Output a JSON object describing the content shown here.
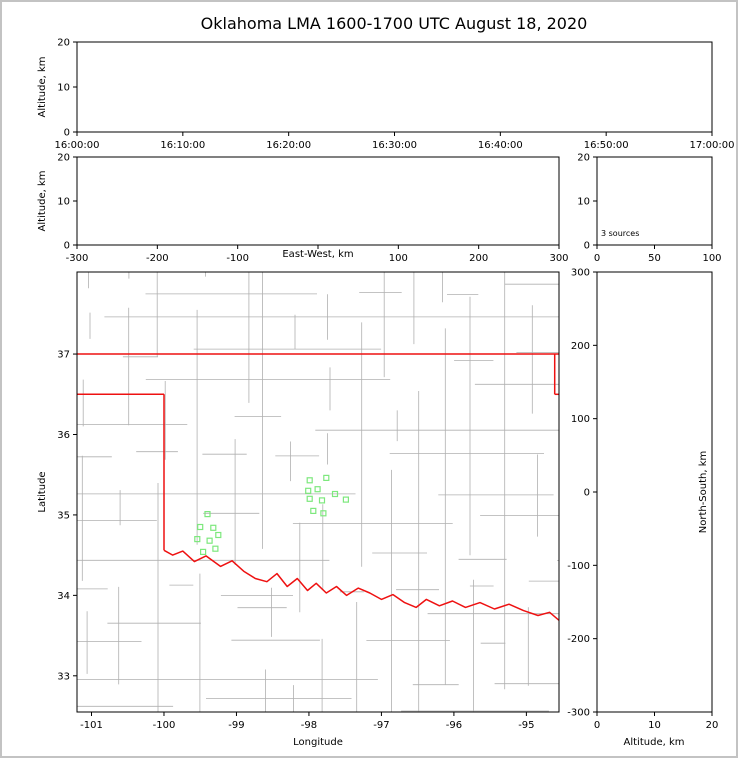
{
  "figure": {
    "title": "Oklahoma LMA 1600-1700 UTC August 18, 2020"
  },
  "colors": {
    "axis": "#000000",
    "county_lines": "#b0b0b0",
    "state_lines": "#ee1111",
    "station_marker": "#7de87d",
    "background": "#ffffff",
    "frame_border": "#c3c3c3"
  },
  "chart_data": [
    {
      "id": "time_height",
      "type": "scatter",
      "xlabel": "",
      "ylabel": "Altitude, km",
      "xlim": [
        0,
        6
      ],
      "ylim": [
        0,
        20
      ],
      "xticks": [
        0,
        1,
        2,
        3,
        4,
        5,
        6
      ],
      "xtick_labels": [
        "16:00:00",
        "16:10:00",
        "16:20:00",
        "16:30:00",
        "16:40:00",
        "16:50:00",
        "17:00:00"
      ],
      "yticks": [
        0,
        10,
        20
      ],
      "points": []
    },
    {
      "id": "east_west",
      "type": "scatter",
      "xlabel": "East-West, km",
      "ylabel": "Altitude, km",
      "xlim": [
        -300,
        300
      ],
      "ylim": [
        0,
        20
      ],
      "xticks": [
        -300,
        -200,
        -100,
        0,
        100,
        200,
        300
      ],
      "xtick_labels": [
        "-300",
        "-200",
        "-100",
        "",
        "100",
        "200",
        "300"
      ],
      "yticks": [
        0,
        10,
        20
      ],
      "points": []
    },
    {
      "id": "source_histogram",
      "type": "line",
      "xlabel": "",
      "ylabel": "",
      "xlim": [
        0,
        100
      ],
      "ylim": [
        0,
        20
      ],
      "xticks": [
        0,
        50,
        100
      ],
      "yticks": [
        0,
        10,
        20
      ],
      "annotation": "3 sources",
      "points": []
    },
    {
      "id": "plan_view_map",
      "type": "map-scatter",
      "xlabel": "Longitude",
      "ylabel": "Latitude",
      "xlim": [
        -101.2,
        -94.55
      ],
      "ylim": [
        32.55,
        38.02
      ],
      "xticks": [
        -101,
        -100,
        -99,
        -98,
        -97,
        -96,
        -95
      ],
      "yticks": [
        33,
        34,
        35,
        36,
        37
      ],
      "state_border_segments": [
        [
          [
            -101.2,
            37.0
          ],
          [
            -94.55,
            37.0
          ]
        ],
        [
          [
            -101.2,
            36.5
          ],
          [
            -100.0,
            36.5
          ]
        ],
        [
          [
            -100.0,
            36.5
          ],
          [
            -100.0,
            34.56
          ]
        ],
        [
          [
            -94.61,
            37.0
          ],
          [
            -94.61,
            36.5
          ]
        ],
        [
          [
            -94.61,
            36.5
          ],
          [
            -94.55,
            36.5
          ]
        ]
      ],
      "red_river": [
        [
          -100.0,
          34.56
        ],
        [
          -99.88,
          34.5
        ],
        [
          -99.74,
          34.55
        ],
        [
          -99.58,
          34.42
        ],
        [
          -99.42,
          34.49
        ],
        [
          -99.22,
          34.36
        ],
        [
          -99.06,
          34.43
        ],
        [
          -98.9,
          34.3
        ],
        [
          -98.74,
          34.21
        ],
        [
          -98.58,
          34.17
        ],
        [
          -98.44,
          34.27
        ],
        [
          -98.3,
          34.11
        ],
        [
          -98.16,
          34.21
        ],
        [
          -98.02,
          34.06
        ],
        [
          -97.9,
          34.15
        ],
        [
          -97.76,
          34.03
        ],
        [
          -97.62,
          34.11
        ],
        [
          -97.48,
          34.0
        ],
        [
          -97.32,
          34.09
        ],
        [
          -97.16,
          34.03
        ],
        [
          -97.0,
          33.95
        ],
        [
          -96.84,
          34.01
        ],
        [
          -96.68,
          33.91
        ],
        [
          -96.52,
          33.85
        ],
        [
          -96.38,
          33.95
        ],
        [
          -96.2,
          33.87
        ],
        [
          -96.02,
          33.93
        ],
        [
          -95.84,
          33.85
        ],
        [
          -95.64,
          33.91
        ],
        [
          -95.44,
          33.83
        ],
        [
          -95.24,
          33.89
        ],
        [
          -95.04,
          33.81
        ],
        [
          -94.84,
          33.75
        ],
        [
          -94.68,
          33.79
        ],
        [
          -94.55,
          33.69
        ]
      ],
      "stations": [
        [
          -97.99,
          35.43
        ],
        [
          -97.76,
          35.46
        ],
        [
          -98.01,
          35.3
        ],
        [
          -97.88,
          35.32
        ],
        [
          -97.99,
          35.2
        ],
        [
          -97.82,
          35.18
        ],
        [
          -97.64,
          35.26
        ],
        [
          -97.94,
          35.05
        ],
        [
          -97.8,
          35.02
        ],
        [
          -97.49,
          35.19
        ],
        [
          -99.4,
          35.01
        ],
        [
          -99.5,
          34.85
        ],
        [
          -99.32,
          34.84
        ],
        [
          -99.54,
          34.7
        ],
        [
          -99.37,
          34.68
        ],
        [
          -99.46,
          34.54
        ],
        [
          -99.29,
          34.58
        ],
        [
          -99.25,
          34.75
        ]
      ]
    },
    {
      "id": "north_south",
      "type": "scatter",
      "xlabel": "Altitude, km",
      "ylabel": "North-South, km",
      "xlim": [
        0,
        20
      ],
      "ylim": [
        -300,
        300
      ],
      "xticks": [
        0,
        10,
        20
      ],
      "yticks": [
        -300,
        -200,
        -100,
        0,
        100,
        200,
        300
      ],
      "points": []
    }
  ]
}
